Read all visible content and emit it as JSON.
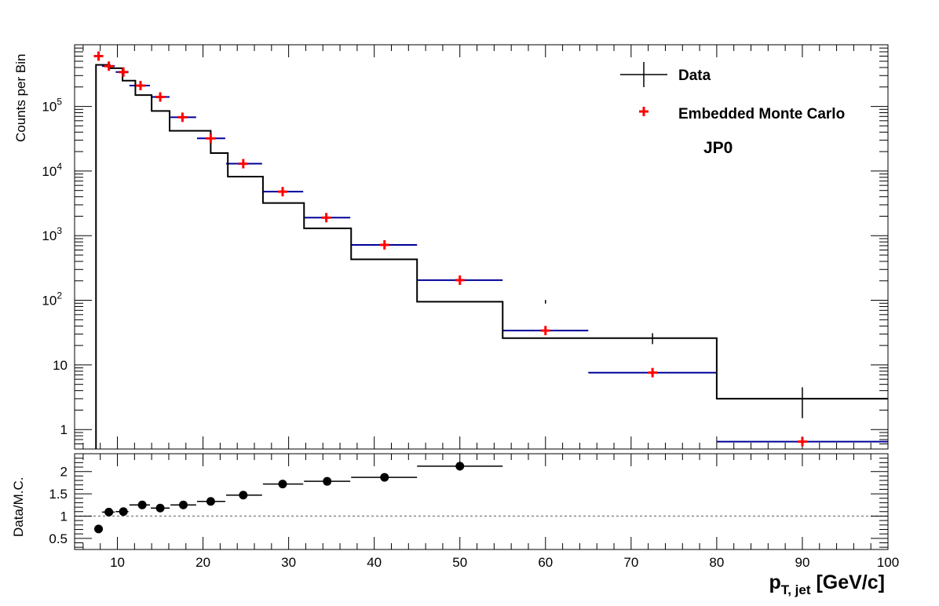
{
  "chart_data": [
    {
      "type": "line",
      "panel": "top",
      "title": "",
      "xlabel": "p",
      "xlabel_sub": "T, jet",
      "xlabel_unit": " [GeV/c]",
      "ylabel": "Counts per Bin",
      "xlim": [
        5,
        100
      ],
      "ylim": [
        0.5,
        900000
      ],
      "yscale": "log",
      "grid": false,
      "legend_position": "top-right",
      "bin_edges": [
        7.5,
        9.1,
        10.6,
        12.1,
        14.0,
        16.1,
        18.7,
        20.9,
        22.9,
        27.0,
        31.8,
        37.3,
        45.0,
        55.0,
        65.0,
        80.0,
        100.0
      ],
      "series": [
        {
          "name": "Data",
          "color": "#000000",
          "style": "histogram",
          "values": [
            440000,
            390000,
            250000,
            150000,
            85000,
            42000,
            42000,
            19000,
            8200,
            3200,
            1300,
            430,
            95,
            26,
            26,
            3
          ],
          "error_points": [
            {
              "x": 60,
              "y": 95,
              "err": 6
            },
            {
              "x": 72.5,
              "y": 26,
              "err": 5
            },
            {
              "x": 90,
              "y": 3,
              "err": 1.5
            }
          ]
        },
        {
          "name": "Embedded Monte Carlo",
          "color": "#ff0000",
          "bar_color": "#000099",
          "style": "markers",
          "x": [
            7.8,
            9.0,
            10.7,
            12.7,
            15.0,
            17.6,
            20.9,
            24.7,
            29.3,
            34.4,
            41.2,
            50.0,
            60.0,
            72.5,
            90.0
          ],
          "y": [
            600000,
            420000,
            340000,
            210000,
            140000,
            68000,
            32000,
            13000,
            4800,
            1900,
            720,
            205,
            34,
            7.6,
            0.65
          ],
          "xmin": [
            7.5,
            8.2,
            9.8,
            11.4,
            13.9,
            16.2,
            19.3,
            22.7,
            27.0,
            31.8,
            37.3,
            45.0,
            55.0,
            65.0,
            80.0
          ],
          "xmax": [
            8.1,
            9.7,
            11.3,
            13.8,
            16.1,
            19.2,
            22.6,
            26.9,
            31.7,
            37.2,
            45.0,
            55.0,
            65.0,
            80.0,
            100.0
          ]
        }
      ],
      "yticks": [
        {
          "value": 1,
          "label": "1"
        },
        {
          "value": 10,
          "label": "10"
        },
        {
          "value": 100,
          "label": "10",
          "exp": "2"
        },
        {
          "value": 1000,
          "label": "10",
          "exp": "3"
        },
        {
          "value": 10000,
          "label": "10",
          "exp": "4"
        },
        {
          "value": 100000,
          "label": "10",
          "exp": "5"
        }
      ],
      "annotation": "JP0"
    },
    {
      "type": "scatter",
      "panel": "bottom",
      "ylabel": "Data/M.C.",
      "xlim": [
        5,
        100
      ],
      "ylim": [
        0.25,
        2.4
      ],
      "reference_line": 1,
      "yticks": [
        {
          "value": 0.5,
          "label": "0.5"
        },
        {
          "value": 1,
          "label": "1"
        },
        {
          "value": 1.5,
          "label": "1.5"
        },
        {
          "value": 2,
          "label": "2"
        }
      ],
      "xticks": [
        {
          "value": 10,
          "label": "10"
        },
        {
          "value": 20,
          "label": "20"
        },
        {
          "value": 30,
          "label": "30"
        },
        {
          "value": 40,
          "label": "40"
        },
        {
          "value": 50,
          "label": "50"
        },
        {
          "value": 60,
          "label": "60"
        },
        {
          "value": 70,
          "label": "70"
        },
        {
          "value": 80,
          "label": "80"
        },
        {
          "value": 90,
          "label": "90"
        },
        {
          "value": 100,
          "label": "100"
        }
      ],
      "series": [
        {
          "name": "",
          "color": "#000000",
          "x": [
            7.8,
            9.0,
            10.7,
            12.9,
            15.0,
            17.7,
            20.9,
            24.7,
            29.3,
            34.5,
            41.2,
            50.0
          ],
          "y": [
            0.71,
            1.09,
            1.1,
            1.25,
            1.18,
            1.25,
            1.33,
            1.47,
            1.72,
            1.78,
            1.87,
            2.12
          ],
          "xmin": [
            7.5,
            8.2,
            9.8,
            11.4,
            13.9,
            16.2,
            19.3,
            22.7,
            27.0,
            31.8,
            37.3,
            45.0
          ],
          "xmax": [
            8.1,
            9.7,
            11.3,
            13.8,
            16.1,
            19.2,
            22.6,
            26.9,
            31.7,
            37.2,
            45.0,
            55.0
          ],
          "yerr": [
            0.02,
            0.02,
            0.02,
            0.02,
            0.02,
            0.02,
            0.02,
            0.02,
            0.03,
            0.03,
            0.04,
            0.1
          ]
        }
      ]
    }
  ]
}
